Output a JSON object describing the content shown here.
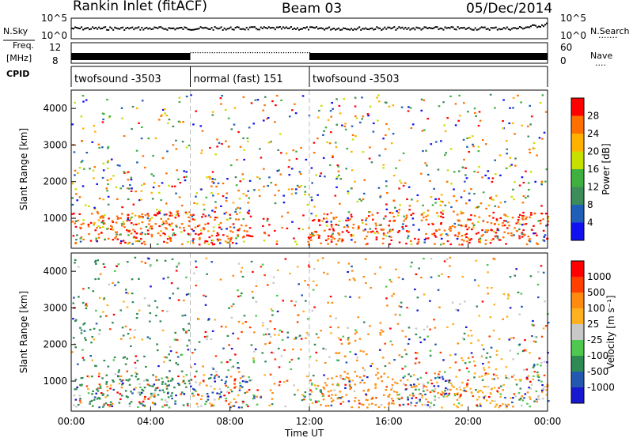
{
  "header": {
    "station": "Rankin Inlet (fitACF)",
    "beam": "Beam 03",
    "date": "05/Dec/2014"
  },
  "status_panels": {
    "nsky_label": "N.Sky",
    "nsearch_label": "N.Search",
    "nsearch_dots": "·······",
    "freq_label_1": "Freq.",
    "freq_label_2": "[MHz]",
    "nave_label": "Nave",
    "nave_dots": "····",
    "cpid_label": "CPID",
    "noise_ticks_left": [
      "10^5",
      "10^0"
    ],
    "noise_ticks_right": [
      "10^5",
      "10^0"
    ],
    "freq_ticks": [
      "12",
      "8"
    ],
    "nave_ticks": [
      "60",
      "0"
    ],
    "cpid_segments": [
      {
        "label": "twofsound -3503",
        "start_hour": 0,
        "end_hour": 6
      },
      {
        "label": "normal (fast) 151",
        "start_hour": 6,
        "end_hour": 12
      },
      {
        "label": "twofsound -3503",
        "start_hour": 12,
        "end_hour": 24
      }
    ]
  },
  "colors": {
    "power_scale": [
      "#1010f0",
      "#1f5fb8",
      "#3d8d5a",
      "#3fb03f",
      "#c8e000",
      "#ffb000",
      "#ff7000",
      "#ff0000"
    ],
    "velocity_scale": [
      "#1818d0",
      "#2258b0",
      "#2e8a52",
      "#4ec84e",
      "#c8c8c8",
      "#ffb020",
      "#ff8a10",
      "#ff4000",
      "#ff0000"
    ]
  },
  "chart_data": [
    {
      "type": "heatmap",
      "title": "",
      "xlabel": "Time UT",
      "ylabel": "Slant Range [km]",
      "x_ticks": [
        "00:00",
        "04:00",
        "08:00",
        "12:00",
        "16:00",
        "20:00",
        "00:00"
      ],
      "y_ticks": [
        "1000",
        "2000",
        "3000",
        "4000"
      ],
      "xlim": [
        0,
        24
      ],
      "ylim": [
        180,
        4500
      ],
      "colorbar_label": "Power [dB]",
      "colorbar_ticks": [
        "28",
        "24",
        "20",
        "16",
        "12",
        "8",
        "4"
      ],
      "colorbar_range": [
        0,
        32
      ],
      "grid": false
    },
    {
      "type": "heatmap",
      "title": "",
      "xlabel": "Time UT",
      "ylabel": "Slant Range [km]",
      "x_ticks": [
        "00:00",
        "04:00",
        "08:00",
        "12:00",
        "16:00",
        "20:00",
        "00:00"
      ],
      "y_ticks": [
        "1000",
        "2000",
        "3000",
        "4000"
      ],
      "xlim": [
        0,
        24
      ],
      "ylim": [
        180,
        4500
      ],
      "colorbar_label": "Velocity [m s⁻¹]",
      "colorbar_ticks": [
        "1000",
        "500",
        "100",
        "25",
        "-25",
        "-100",
        "-500",
        "-1000"
      ],
      "grid": false
    }
  ]
}
